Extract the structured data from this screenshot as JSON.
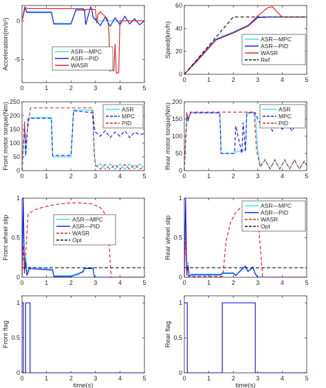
{
  "chart_data": [
    {
      "type": "line",
      "ylabel": "Acceleration(m/s²)",
      "xlabel": "",
      "xlim": [
        0,
        5
      ],
      "ylim": [
        -8,
        2
      ],
      "xticks": [
        0,
        1,
        2,
        3,
        4,
        5
      ],
      "yticks": [
        -5,
        0
      ],
      "legend": "center-right",
      "series": [
        {
          "name": "ASR—MPC",
          "color": "#33e0ff",
          "dash": "solid",
          "x": [
            0,
            0.12,
            0.2,
            1.2,
            1.3,
            2.0,
            2.2,
            2.55,
            2.6,
            2.8,
            2.85,
            2.9,
            3.0,
            3.5,
            5.0
          ],
          "y": [
            0,
            1.5,
            1.2,
            1.2,
            -0.3,
            -0.3,
            1.5,
            1.5,
            -0.4,
            1.7,
            1.6,
            0.4,
            0,
            0,
            0
          ]
        },
        {
          "name": "ASR—PID",
          "color": "#1a1aff",
          "dash": "solid",
          "x": [
            0,
            0.12,
            0.2,
            1.2,
            1.3,
            2.0,
            2.2,
            2.55,
            2.6,
            2.8,
            2.85,
            2.9,
            3.0,
            3.2,
            3.4,
            3.6,
            3.8,
            4.0,
            4.2,
            4.4,
            4.6,
            4.8,
            5.0
          ],
          "y": [
            0,
            1.8,
            1.1,
            1.1,
            -0.4,
            -0.4,
            1.4,
            1.4,
            -0.5,
            1.8,
            1.5,
            0.5,
            0.2,
            -0.6,
            0.5,
            -0.7,
            0.4,
            -0.5,
            0.6,
            -0.4,
            0.3,
            -0.5,
            0
          ]
        },
        {
          "name": "WASR",
          "color": "#e02424",
          "dash": "solid",
          "x": [
            0,
            0.1,
            0.3,
            2.5,
            2.55,
            2.6,
            3.0,
            3.05,
            3.1,
            3.2,
            3.5,
            3.55,
            3.6,
            3.65,
            3.75,
            3.8,
            3.85,
            3.95,
            4.0,
            4.5,
            5.0
          ],
          "y": [
            0,
            1.7,
            1.6,
            1.6,
            1.2,
            1.5,
            1.5,
            -0.3,
            0.8,
            1.2,
            0.2,
            -1.5,
            -6.5,
            -6.3,
            -6.5,
            -3,
            -6.8,
            -6.7,
            0,
            0,
            0
          ]
        }
      ]
    },
    {
      "type": "line",
      "ylabel": "Speed(km/h)",
      "xlabel": "",
      "xlim": [
        0,
        5
      ],
      "ylim": [
        0,
        60
      ],
      "xticks": [
        0,
        1,
        2,
        3,
        4,
        5
      ],
      "yticks": [
        0,
        20,
        40,
        60
      ],
      "legend": "bottom-right",
      "series": [
        {
          "name": "ASR—MPC",
          "color": "#33e0ff",
          "dash": "solid",
          "x": [
            0,
            0.5,
            1.0,
            1.3,
            2.0,
            2.6,
            2.9,
            3.0,
            3.5,
            5.0
          ],
          "y": [
            0,
            12,
            24,
            31,
            37,
            43,
            48,
            50,
            50,
            50
          ]
        },
        {
          "name": "ASR—PID",
          "color": "#1a1aff",
          "dash": "solid",
          "x": [
            0,
            0.5,
            1.0,
            1.3,
            2.0,
            2.6,
            2.9,
            3.0,
            3.5,
            5.0
          ],
          "y": [
            0,
            11,
            23,
            30,
            36,
            42,
            47.5,
            49.5,
            50,
            50
          ]
        },
        {
          "name": "WASR",
          "color": "#e02424",
          "dash": "solid",
          "x": [
            0,
            0.5,
            1.0,
            1.3,
            2.0,
            2.6,
            3.0,
            3.4,
            3.6,
            3.8,
            4.0,
            5.0
          ],
          "y": [
            0,
            11.5,
            23.5,
            30.5,
            36.5,
            42.5,
            51,
            58,
            59,
            54,
            50,
            50
          ]
        },
        {
          "name": "Ref",
          "color": "#111111",
          "dash": "dashed",
          "x": [
            0,
            2.0,
            5.0
          ],
          "y": [
            0,
            50,
            50
          ]
        }
      ]
    },
    {
      "type": "line",
      "ylabel": "Front motor torque(Nm)",
      "xlabel": "",
      "xlim": [
        0,
        5
      ],
      "ylim": [
        0,
        250
      ],
      "xticks": [
        0,
        1,
        2,
        3,
        4,
        5
      ],
      "yticks": [
        0,
        50,
        100,
        150,
        200,
        250
      ],
      "legend": "top-right",
      "series": [
        {
          "name": "ASR",
          "color": "#33e0ff",
          "dash": "solid",
          "x": [
            0,
            0.1,
            0.15,
            0.25,
            0.3,
            1.2,
            1.25,
            1.3,
            2.0,
            2.05,
            2.1,
            2.9,
            2.95,
            3.0,
            3.2,
            3.4,
            3.6,
            3.8,
            4.0,
            4.2,
            4.4,
            4.6,
            4.8,
            5.0
          ],
          "y": [
            0,
            170,
            50,
            190,
            193,
            193,
            50,
            50,
            50,
            120,
            220,
            220,
            80,
            15,
            25,
            5,
            25,
            5,
            25,
            5,
            25,
            5,
            25,
            10
          ]
        },
        {
          "name": "MPC",
          "color": "#1a1aff",
          "dash": "dashed",
          "x": [
            0,
            0.1,
            0.15,
            0.25,
            0.3,
            1.2,
            1.25,
            1.3,
            2.0,
            2.05,
            2.1,
            2.9,
            2.95,
            3.0,
            3.2,
            3.4,
            3.6,
            3.8,
            4.0,
            4.2,
            4.4,
            4.6,
            4.8,
            5.0
          ],
          "y": [
            0,
            165,
            55,
            188,
            190,
            190,
            55,
            55,
            55,
            130,
            218,
            210,
            160,
            140,
            125,
            145,
            120,
            140,
            125,
            145,
            120,
            140,
            130,
            135
          ]
        },
        {
          "name": "PID",
          "color": "#e02424",
          "dash": "dashed",
          "x": [
            0,
            0.1,
            0.15,
            0.35,
            2.85,
            2.9,
            2.95,
            3.0,
            3.2,
            3.4,
            3.6,
            3.8,
            4.0,
            4.2,
            4.4,
            4.6,
            4.8,
            5.0
          ],
          "y": [
            0,
            180,
            100,
            228,
            228,
            180,
            60,
            20,
            5,
            22,
            5,
            22,
            5,
            22,
            5,
            22,
            5,
            15
          ]
        }
      ]
    },
    {
      "type": "line",
      "ylabel": "Rear motor torque(Nm)",
      "xlabel": "",
      "xlim": [
        0,
        5
      ],
      "ylim": [
        0,
        200
      ],
      "xticks": [
        0,
        1,
        2,
        3,
        4,
        5
      ],
      "yticks": [
        0,
        50,
        100,
        150,
        200
      ],
      "legend": "top-right",
      "series": [
        {
          "name": "ASR",
          "color": "#33e0ff",
          "dash": "solid",
          "x": [
            0,
            0.1,
            0.15,
            0.25,
            1.45,
            1.5,
            2.05,
            2.1,
            2.35,
            2.4,
            2.5,
            2.55,
            2.9,
            3.0,
            3.1,
            3.3,
            3.5,
            3.7,
            3.9,
            4.1,
            4.3,
            4.5,
            4.7,
            4.9,
            5.0
          ],
          "y": [
            0,
            160,
            140,
            168,
            168,
            50,
            50,
            55,
            55,
            60,
            60,
            168,
            168,
            60,
            15,
            30,
            5,
            30,
            5,
            30,
            5,
            30,
            5,
            25,
            15
          ]
        },
        {
          "name": "MPC",
          "color": "#1a1aff",
          "dash": "dashed",
          "x": [
            0,
            0.1,
            0.15,
            0.25,
            1.45,
            1.5,
            2.05,
            2.1,
            2.35,
            2.4,
            2.5,
            2.55,
            2.9,
            3.0,
            3.2,
            3.4,
            3.6,
            3.8,
            4.0,
            4.2,
            4.4,
            4.6,
            4.8,
            5.0
          ],
          "y": [
            0,
            160,
            145,
            168,
            168,
            50,
            50,
            130,
            50,
            140,
            55,
            168,
            168,
            150,
            125,
            140,
            115,
            145,
            120,
            140,
            115,
            140,
            125,
            135
          ]
        },
        {
          "name": "PID",
          "color": "#e02424",
          "dash": "dashed",
          "x": [
            0,
            0.1,
            0.15,
            0.25,
            2.85,
            2.95,
            3.1,
            3.3,
            3.5,
            3.7,
            3.9,
            4.1,
            4.3,
            4.5,
            4.7,
            4.9,
            5.0
          ],
          "y": [
            0,
            170,
            150,
            170,
            170,
            60,
            10,
            32,
            5,
            32,
            5,
            32,
            5,
            32,
            5,
            28,
            15
          ]
        }
      ]
    },
    {
      "type": "line",
      "ylabel": "Front wheel slip",
      "xlabel": "",
      "xlim": [
        0,
        5
      ],
      "ylim": [
        0,
        1
      ],
      "xticks": [
        0,
        1,
        2,
        3,
        4,
        5
      ],
      "yticks": [
        0,
        0.5,
        1
      ],
      "legend": "center",
      "series": [
        {
          "name": "ASR—MPC",
          "color": "#33e0ff",
          "dash": "solid",
          "x": [
            0,
            0.05,
            0.1,
            0.15,
            0.2,
            0.3,
            1.25,
            1.3,
            2.0,
            2.3,
            2.5,
            2.55,
            2.9,
            2.95,
            3.0,
            5.0
          ],
          "y": [
            0,
            0.8,
            0.1,
            0.3,
            0.05,
            0.13,
            0.1,
            0.02,
            0.02,
            0.05,
            0.08,
            0.12,
            0.12,
            0.02,
            0,
            0
          ]
        },
        {
          "name": "ASR—PID",
          "color": "#1a1aff",
          "dash": "solid",
          "x": [
            0,
            0.05,
            0.1,
            0.15,
            0.2,
            0.3,
            1.25,
            1.3,
            2.0,
            2.3,
            2.5,
            2.55,
            2.9,
            2.95,
            3.0,
            5.0
          ],
          "y": [
            0,
            1.0,
            0.05,
            0.2,
            0.02,
            0.11,
            0.09,
            0.01,
            0.01,
            0.04,
            0.07,
            0.11,
            0.11,
            0.01,
            0,
            0
          ]
        },
        {
          "name": "WASR",
          "color": "#e02424",
          "dash": "dashed",
          "x": [
            0,
            0.05,
            0.1,
            0.15,
            0.25,
            0.5,
            0.8,
            1.2,
            1.6,
            2.0,
            2.4,
            2.8,
            3.0,
            3.2,
            3.35,
            3.45,
            3.55,
            3.62,
            3.65,
            5.0
          ],
          "y": [
            0,
            0.4,
            0.05,
            0.3,
            0.8,
            0.85,
            0.88,
            0.91,
            0.93,
            0.94,
            0.94,
            0.93,
            0.91,
            0.88,
            0.82,
            0.7,
            0.45,
            0.1,
            0,
            0
          ]
        },
        {
          "name": "Opt",
          "color": "#111111",
          "dash": "dashed",
          "x": [
            0,
            5.0
          ],
          "y": [
            0.12,
            0.12
          ]
        }
      ]
    },
    {
      "type": "line",
      "ylabel": "Rear wheel slip",
      "xlabel": "",
      "xlim": [
        0,
        5
      ],
      "ylim": [
        0,
        1
      ],
      "xticks": [
        0,
        1,
        2,
        3,
        4,
        5
      ],
      "yticks": [
        0,
        0.5,
        1
      ],
      "legend": "top-right",
      "series": [
        {
          "name": "ASR—MPC",
          "color": "#33e0ff",
          "dash": "solid",
          "x": [
            0,
            0.05,
            0.1,
            0.15,
            0.2,
            0.3,
            1.5,
            1.55,
            2.0,
            2.1,
            2.4,
            2.5,
            2.6,
            2.8,
            2.9,
            3.0,
            5.0
          ],
          "y": [
            0,
            0.8,
            0.05,
            0.2,
            0.02,
            0.04,
            0.04,
            0.06,
            0.06,
            0.03,
            0.1,
            0.12,
            0.08,
            0.11,
            0.05,
            0,
            0
          ]
        },
        {
          "name": "ASR—PID",
          "color": "#1a1aff",
          "dash": "solid",
          "x": [
            0,
            0.05,
            0.1,
            0.15,
            0.2,
            0.3,
            1.5,
            1.55,
            2.0,
            2.1,
            2.4,
            2.5,
            2.6,
            2.8,
            2.9,
            3.0,
            5.0
          ],
          "y": [
            0,
            1.0,
            0.03,
            0.15,
            0.01,
            0.03,
            0.03,
            0.05,
            0.05,
            0.02,
            0.12,
            0.14,
            0.07,
            0.13,
            0.04,
            0,
            0
          ]
        },
        {
          "name": "WASR",
          "color": "#e02424",
          "dash": "dashed",
          "x": [
            0,
            0.05,
            0.1,
            0.2,
            1.55,
            1.6,
            1.7,
            1.9,
            2.1,
            2.3,
            2.5,
            2.7,
            2.9,
            3.05,
            3.15,
            3.2,
            5.0
          ],
          "y": [
            0,
            0.5,
            0.03,
            0.01,
            0.01,
            0.1,
            0.45,
            0.7,
            0.82,
            0.88,
            0.9,
            0.88,
            0.82,
            0.6,
            0.2,
            0,
            0
          ]
        },
        {
          "name": "Opt",
          "color": "#111111",
          "dash": "dashed",
          "x": [
            0,
            5.0
          ],
          "y": [
            0.12,
            0.12
          ]
        }
      ]
    },
    {
      "type": "line",
      "ylabel": "Front flag",
      "xlabel": "time(s)",
      "xlim": [
        0,
        5
      ],
      "ylim": [
        0,
        1.1
      ],
      "xticks": [
        0,
        1,
        2,
        3,
        4,
        5
      ],
      "yticks": [
        0,
        0.5,
        1
      ],
      "legend": "none",
      "series": [
        {
          "name": "",
          "color": "#1a1aff",
          "dash": "solid",
          "x": [
            0,
            0.05,
            0.05,
            0.15,
            0.15,
            0.33,
            0.33,
            2.9,
            2.9,
            5.0
          ],
          "y": [
            1,
            1,
            0,
            0,
            1,
            1,
            0,
            0,
            0,
            0
          ]
        }
      ]
    },
    {
      "type": "line",
      "ylabel": "Rear flag",
      "xlabel": "time(s)",
      "xlim": [
        0,
        5
      ],
      "ylim": [
        0,
        1.1
      ],
      "xticks": [
        0,
        1,
        2,
        3,
        4,
        5
      ],
      "yticks": [
        0,
        0.5,
        1
      ],
      "legend": "none",
      "series": [
        {
          "name": "",
          "color": "#1a1aff",
          "dash": "solid",
          "x": [
            0,
            0.12,
            0.12,
            1.55,
            1.55,
            2.9,
            2.9,
            5.0
          ],
          "y": [
            1,
            1,
            0,
            0,
            1,
            1,
            0,
            0
          ]
        }
      ]
    }
  ]
}
